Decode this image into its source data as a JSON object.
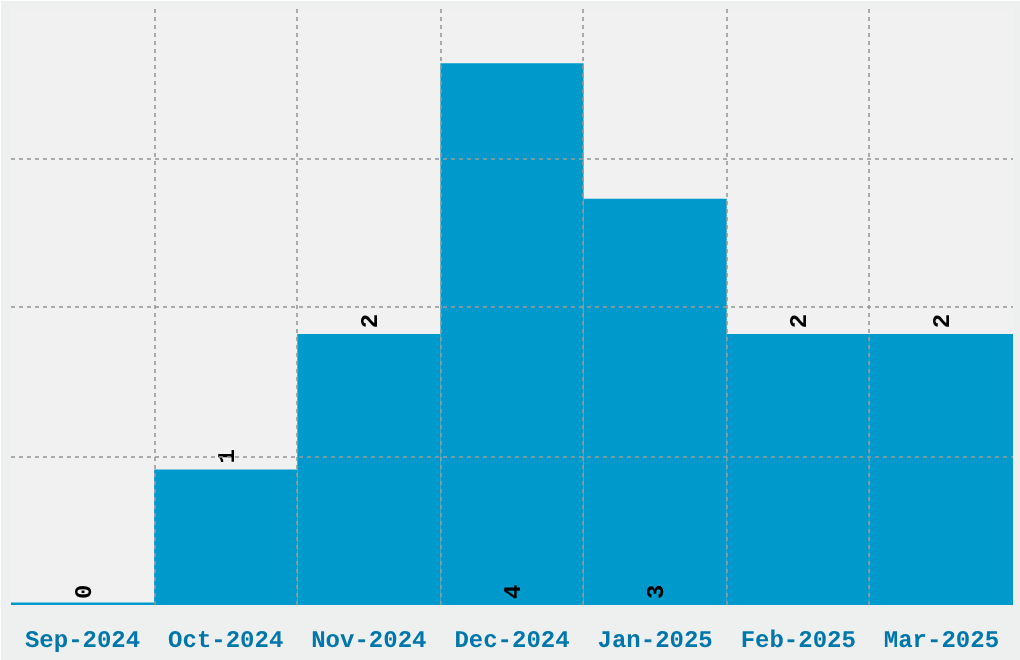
{
  "chart_data": {
    "type": "bar",
    "categories": [
      "Sep-2024",
      "Oct-2024",
      "Nov-2024",
      "Dec-2024",
      "Jan-2025",
      "Feb-2025",
      "Mar-2025"
    ],
    "values": [
      0,
      1,
      2,
      4,
      3,
      2,
      2
    ],
    "color": "#0099cc",
    "ylim": [
      0,
      4.4
    ],
    "yticks": [
      {
        "value": 1.1,
        "label": null
      },
      {
        "value": 2.2,
        "label": null
      },
      {
        "value": 3.3,
        "label": null
      }
    ],
    "tick_labels": "x",
    "grid": true,
    "data_labels": true
  }
}
